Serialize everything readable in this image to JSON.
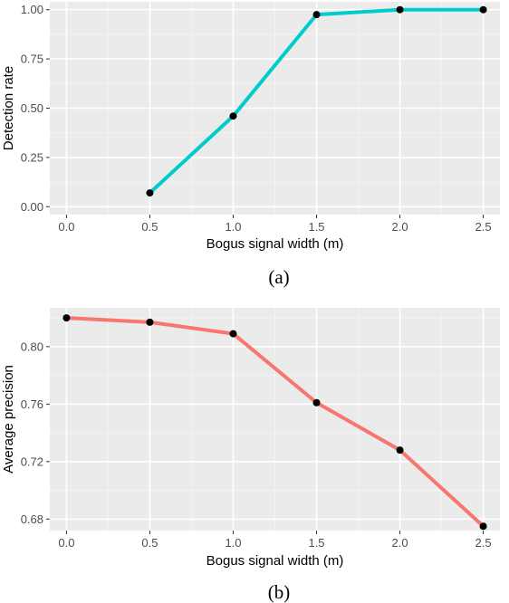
{
  "chart_data": [
    {
      "type": "line",
      "caption": "(a)",
      "xlabel": "Bogus signal width (m)",
      "ylabel": "Detection rate",
      "xlim": [
        -0.1,
        2.6
      ],
      "ylim": [
        -0.04,
        1.04
      ],
      "x_ticks": [
        0.0,
        0.5,
        1.0,
        1.5,
        2.0,
        2.5
      ],
      "x_tick_labels": [
        "0.0",
        "0.5",
        "1.0",
        "1.5",
        "2.0",
        "2.5"
      ],
      "y_ticks": [
        0.0,
        0.25,
        0.5,
        0.75,
        1.0
      ],
      "y_tick_labels": [
        "0.00",
        "0.25",
        "0.50",
        "0.75",
        "1.00"
      ],
      "grid": true,
      "series": [
        {
          "color": "#00CCCC",
          "x": [
            0.5,
            1.0,
            1.5,
            2.0,
            2.5
          ],
          "y": [
            0.07,
            0.46,
            0.975,
            1.0,
            1.0
          ]
        }
      ]
    },
    {
      "type": "line",
      "caption": "(b)",
      "xlabel": "Bogus signal width (m)",
      "ylabel": "Average precision",
      "xlim": [
        -0.1,
        2.6
      ],
      "ylim": [
        0.672,
        0.827
      ],
      "x_ticks": [
        0.0,
        0.5,
        1.0,
        1.5,
        2.0,
        2.5
      ],
      "x_tick_labels": [
        "0.0",
        "0.5",
        "1.0",
        "1.5",
        "2.0",
        "2.5"
      ],
      "y_ticks": [
        0.68,
        0.72,
        0.76,
        0.8
      ],
      "y_tick_labels": [
        "0.68",
        "0.72",
        "0.76",
        "0.80"
      ],
      "grid": true,
      "series": [
        {
          "color": "#F8766D",
          "x": [
            0.0,
            0.5,
            1.0,
            1.5,
            2.0,
            2.5
          ],
          "y": [
            0.82,
            0.817,
            0.809,
            0.761,
            0.728,
            0.675
          ]
        }
      ]
    }
  ]
}
